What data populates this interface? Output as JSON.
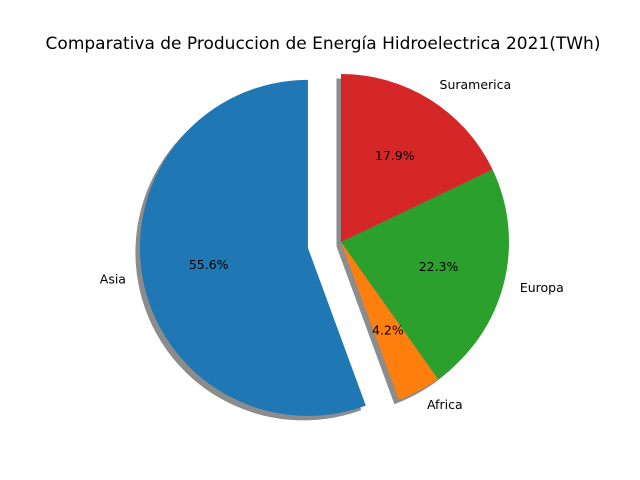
{
  "chart_data": {
    "type": "pie",
    "title": "Comparativa de Produccion de Energía Hidroelectrica 2021(TWh)",
    "slices": [
      {
        "label": "Asia",
        "percent": 55.6,
        "percent_label": "55.6%",
        "color": "#1f77b4",
        "exploded": true
      },
      {
        "label": "Africa",
        "percent": 4.2,
        "percent_label": "4.2%",
        "color": "#ff7f0e",
        "exploded": false
      },
      {
        "label": "Europa",
        "percent": 22.3,
        "percent_label": "22.3%",
        "color": "#2ca02c",
        "exploded": false
      },
      {
        "label": "Suramerica",
        "percent": 17.9,
        "percent_label": "17.9%",
        "color": "#d62728",
        "exploded": false
      }
    ],
    "start_angle_deg": 90,
    "direction": "counterclockwise",
    "shadow": true
  }
}
